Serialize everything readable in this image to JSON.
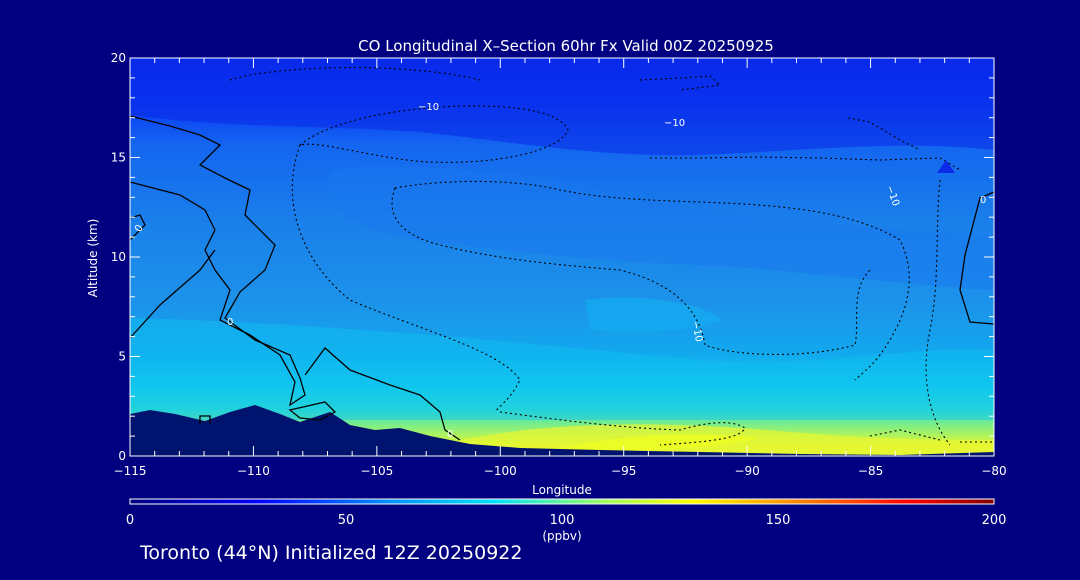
{
  "chart_data": {
    "type": "heatmap",
    "title": "CO Longitudinal X–Section 60hr  Fx Valid 00Z 20250925",
    "xlabel": "Longitude",
    "ylabel": "Altitude (km)",
    "xlim": [
      -115,
      -80
    ],
    "ylim": [
      0,
      20
    ],
    "x_ticks": [
      -115,
      -110,
      -105,
      -100,
      -95,
      -90,
      -85,
      -80
    ],
    "x_tick_labels": [
      "−115",
      "−110",
      "−105",
      "−100",
      "−95",
      "−90",
      "−85",
      "−80"
    ],
    "y_ticks": [
      0,
      5,
      10,
      15,
      20
    ],
    "y_tick_labels": [
      "0",
      "5",
      "10",
      "15",
      "20"
    ],
    "colorbar": {
      "label": "(ppbv)",
      "range": [
        0,
        200
      ],
      "ticks": [
        0,
        50,
        100,
        150,
        200
      ],
      "colors": [
        "#000080",
        "#0000ff",
        "#0090ff",
        "#00e0ff",
        "#a0ff60",
        "#ffff00",
        "#ff8000",
        "#ff0000",
        "#800000"
      ]
    },
    "approx_co_by_altitude_km": [
      {
        "altitude": 0.5,
        "co": 95
      },
      {
        "altitude": 1.5,
        "co": 85
      },
      {
        "altitude": 3,
        "co": 72
      },
      {
        "altitude": 5,
        "co": 64
      },
      {
        "altitude": 8,
        "co": 57
      },
      {
        "altitude": 12,
        "co": 53
      },
      {
        "altitude": 15,
        "co": 48
      },
      {
        "altitude": 18,
        "co": 35
      },
      {
        "altitude": 20,
        "co": 30
      }
    ],
    "contour_labels": [
      "0",
      "0",
      "0",
      "−10",
      "−10",
      "−10",
      "−10",
      "0"
    ],
    "colors": {
      "background": "#000080",
      "text": "#ffffff",
      "terrain": "#00136e"
    }
  },
  "footer": "Toronto (44°N) Initialized 12Z 20250922"
}
